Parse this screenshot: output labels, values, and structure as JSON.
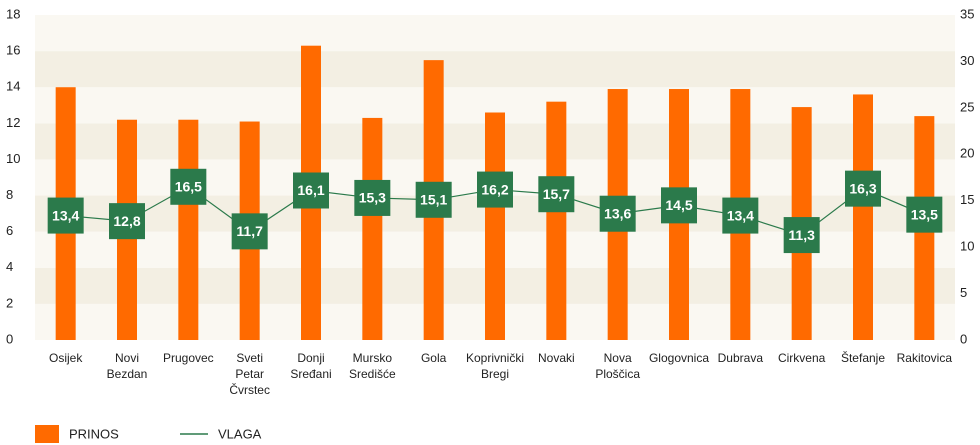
{
  "chart_data": {
    "type": "bar",
    "categories": [
      "Osijek",
      "Novi\nBezdan",
      "Prugovec",
      "Sveti\nPetar\nČvrstec",
      "Donji\nSređani",
      "Mursko\nSredišće",
      "Gola",
      "Koprivnički\nBregi",
      "Novaki",
      "Nova\nPloščica",
      "Glogovnica",
      "Dubrava",
      "Cirkvena",
      "Štefanje",
      "Rakitovica"
    ],
    "series": [
      {
        "name": "PRINOS",
        "type": "bar",
        "color": "#ff6a00",
        "values": [
          14.0,
          12.2,
          12.2,
          12.1,
          16.3,
          12.3,
          15.5,
          12.6,
          13.2,
          13.9,
          13.9,
          13.9,
          12.9,
          13.6,
          12.4
        ]
      },
      {
        "name": "VLAGA",
        "type": "line",
        "axis": "y2",
        "color": "#2b7a4b",
        "values": [
          13.4,
          12.8,
          16.5,
          11.7,
          16.1,
          15.3,
          15.1,
          16.2,
          15.7,
          13.6,
          14.5,
          13.4,
          11.3,
          16.3,
          13.5
        ],
        "value_labels": [
          "13,4",
          "12,8",
          "16,5",
          "11,7",
          "16,1",
          "15,3",
          "15,1",
          "16,2",
          "15,7",
          "13,6",
          "14,5",
          "13,4",
          "11,3",
          "16,3",
          "13,5"
        ]
      }
    ],
    "ylim": [
      0,
      18
    ],
    "yticks": [
      0,
      2,
      4,
      6,
      8,
      10,
      12,
      14,
      16,
      18
    ],
    "y2lim": [
      0,
      35
    ],
    "y2ticks": [
      0,
      5,
      10,
      15,
      20,
      25,
      30,
      35
    ],
    "grid": true,
    "legend": "bottom-left"
  }
}
